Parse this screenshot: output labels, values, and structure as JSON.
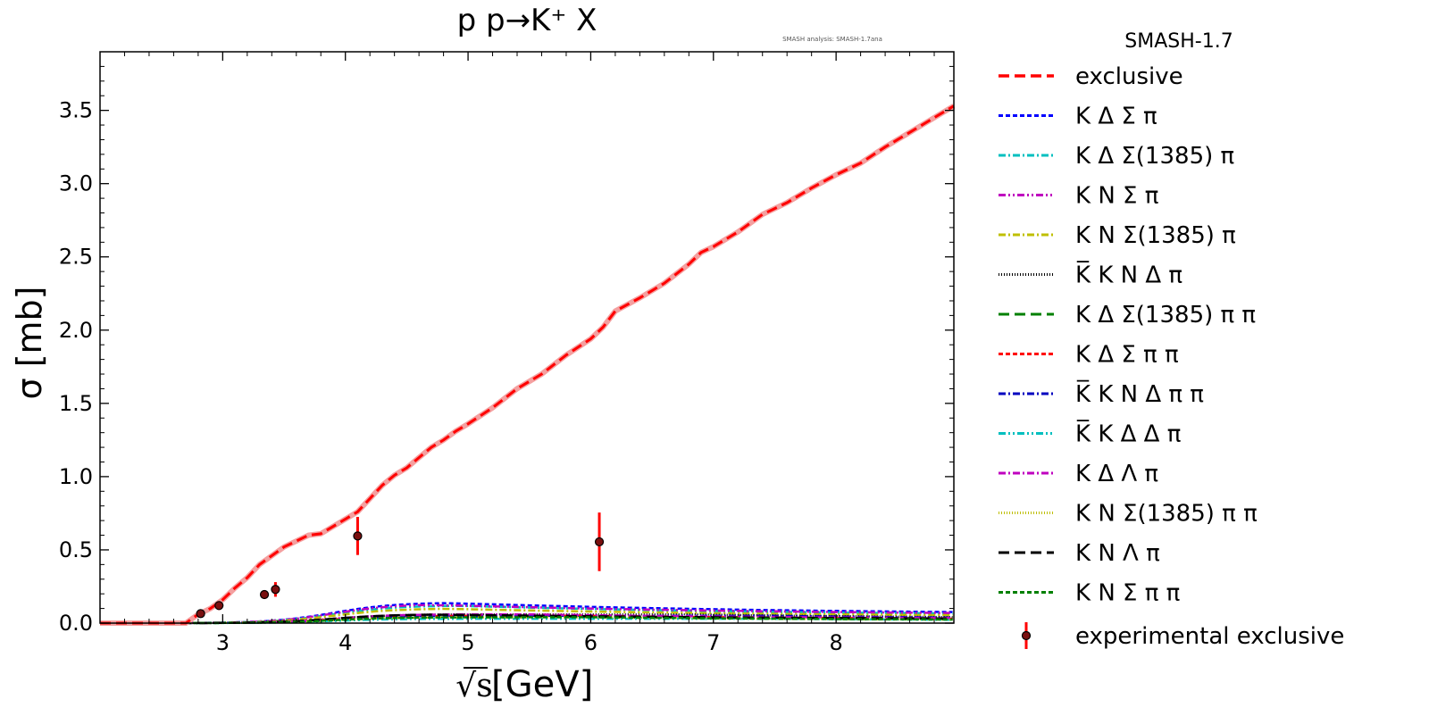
{
  "chart_data": {
    "type": "line",
    "title": "p p→K⁺ X",
    "annotation": "SMASH analysis: SMASH-1.7ana",
    "xlabel_root": "√s",
    "xlabel_unit": "[GeV]",
    "ylabel": "σ [mb]",
    "xlim": [
      2.0,
      8.96
    ],
    "ylim": [
      0.0,
      3.9
    ],
    "xticks": [
      3,
      4,
      5,
      6,
      7,
      8
    ],
    "yticks": [
      0.0,
      0.5,
      1.0,
      1.5,
      2.0,
      2.5,
      3.0,
      3.5
    ],
    "xtick_labels": [
      "3",
      "4",
      "5",
      "6",
      "7",
      "8"
    ],
    "ytick_labels": [
      "0.0",
      "0.5",
      "1.0",
      "1.5",
      "2.0",
      "2.5",
      "3.0",
      "3.5"
    ],
    "legend_title": "SMASH-1.7",
    "legend_position": "outside-right",
    "exclusive": {
      "name": "exclusive",
      "color": "#ff0000",
      "x": [
        2.0,
        2.7,
        2.8,
        2.9,
        3.0,
        3.1,
        3.2,
        3.3,
        3.4,
        3.5,
        3.6,
        3.7,
        3.8,
        3.9,
        4.0,
        4.1,
        4.2,
        4.3,
        4.4,
        4.5,
        4.6,
        4.7,
        4.8,
        4.9,
        5.0,
        5.2,
        5.4,
        5.6,
        5.8,
        6.0,
        6.1,
        6.2,
        6.4,
        6.6,
        6.8,
        6.9,
        7.0,
        7.2,
        7.4,
        7.6,
        7.8,
        8.0,
        8.2,
        8.4,
        8.6,
        8.8,
        8.96
      ],
      "y": [
        0.0,
        0.0,
        0.06,
        0.1,
        0.16,
        0.24,
        0.31,
        0.4,
        0.46,
        0.52,
        0.56,
        0.6,
        0.61,
        0.66,
        0.71,
        0.76,
        0.85,
        0.94,
        1.01,
        1.06,
        1.13,
        1.2,
        1.25,
        1.31,
        1.36,
        1.47,
        1.6,
        1.7,
        1.83,
        1.94,
        2.02,
        2.13,
        2.22,
        2.32,
        2.45,
        2.53,
        2.57,
        2.67,
        2.79,
        2.87,
        2.97,
        3.06,
        3.14,
        3.25,
        3.35,
        3.45,
        3.53
      ]
    },
    "channels": [
      {
        "name": "K Δ Σ π",
        "color": "#0000ff",
        "dash": "5,3",
        "peak": 0.14,
        "peak_x": 4.8
      },
      {
        "name": "K Δ Σ(1385) π",
        "color": "#00bfbf",
        "dash": "8,3,2,3",
        "peak": 0.12,
        "peak_x": 4.9
      },
      {
        "name": "K N Σ π",
        "color": "#bf00bf",
        "dash": "8,3,2,3,2,3",
        "peak": 0.13,
        "peak_x": 4.6
      },
      {
        "name": "K N Σ(1385) π",
        "color": "#bfbf00",
        "dash": "8,3,2,3",
        "peak": 0.1,
        "peak_x": 4.8
      },
      {
        "name": "K̅ K N Δ π",
        "color": "#000000",
        "dash": "1,2",
        "peak": 0.06,
        "peak_x": 6.8
      },
      {
        "name": "K Δ Σ(1385) π π",
        "color": "#008000",
        "dash": "12,6",
        "peak": 0.04,
        "peak_x": 6.0
      },
      {
        "name": "K Δ Σ π π",
        "color": "#ff0000",
        "dash": "5,3",
        "peak": 0.05,
        "peak_x": 6.0
      },
      {
        "name": "K̅ K N Δ π π",
        "color": "#0000bf",
        "dash": "8,3,2,3",
        "peak": 0.05,
        "peak_x": 7.5
      },
      {
        "name": "K̅ K Δ Δ π",
        "color": "#00bfbf",
        "dash": "8,3,2,3,2,3",
        "peak": 0.03,
        "peak_x": 7.5
      },
      {
        "name": "K Δ Λ π",
        "color": "#bf00bf",
        "dash": "8,3,2,3",
        "peak": 0.06,
        "peak_x": 5.5
      },
      {
        "name": "K N Σ(1385) π π",
        "color": "#bfbf00",
        "dash": "1,2",
        "peak": 0.04,
        "peak_x": 6.0
      },
      {
        "name": "K N Λ π",
        "color": "#000000",
        "dash": "12,6",
        "peak": 0.06,
        "peak_x": 4.7
      },
      {
        "name": "K N Σ π π",
        "color": "#008000",
        "dash": "5,3",
        "peak": 0.04,
        "peak_x": 6.0
      }
    ],
    "experimental": {
      "name": "experimental exclusive",
      "color": "#ff0000",
      "points": [
        {
          "x": 2.82,
          "y": 0.065,
          "err": 0.02
        },
        {
          "x": 2.97,
          "y": 0.12,
          "err": 0.03
        },
        {
          "x": 3.34,
          "y": 0.195,
          "err": 0.03
        },
        {
          "x": 3.43,
          "y": 0.23,
          "err": 0.05
        },
        {
          "x": 4.1,
          "y": 0.595,
          "err": 0.13
        },
        {
          "x": 6.07,
          "y": 0.555,
          "err": 0.2
        }
      ]
    }
  }
}
